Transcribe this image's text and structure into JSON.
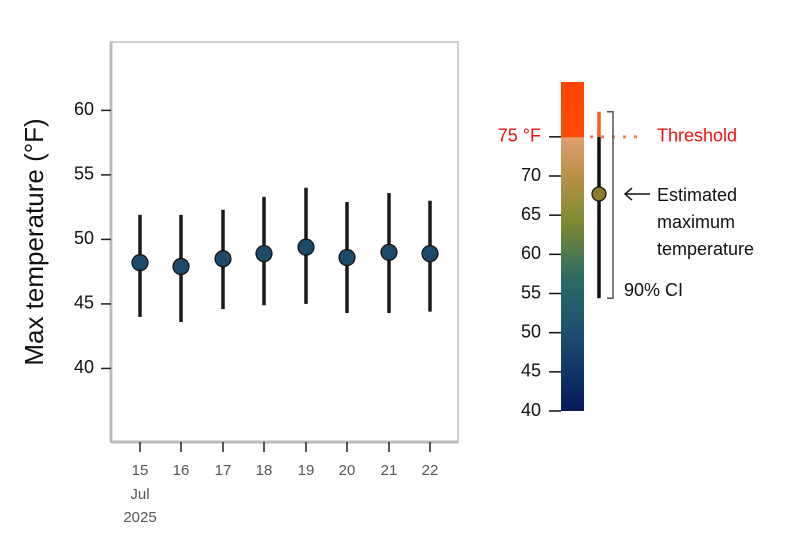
{
  "chart_data": [
    {
      "type": "errorbar",
      "y_label": "Max temperature (°F)",
      "categories": [
        "15",
        "16",
        "17",
        "18",
        "19",
        "20",
        "21",
        "22"
      ],
      "x_month": "Jul",
      "x_year": "2025",
      "values": [
        48.2,
        47.9,
        48.5,
        48.9,
        49.4,
        48.6,
        49.0,
        48.9
      ],
      "low": [
        44.0,
        43.6,
        44.6,
        44.9,
        45.0,
        44.3,
        44.3,
        44.4
      ],
      "high": [
        51.9,
        51.9,
        52.3,
        53.3,
        54.0,
        52.9,
        53.6,
        53.0
      ],
      "color": "#1c4a68",
      "line_color": "#1a1a1a",
      "ylim": [
        34.3,
        65.3
      ],
      "yticks": [
        40,
        45,
        50,
        55,
        60
      ]
    },
    {
      "type": "colorbar",
      "clim": [
        40,
        82
      ],
      "cticks": [
        40,
        45,
        50,
        55,
        60,
        65,
        70,
        {
          "value": 75,
          "label": "75 °F"
        }
      ],
      "gradient": [
        {
          "value": 40,
          "color": "#061a5c"
        },
        {
          "value": 50,
          "color": "#1b4f6e"
        },
        {
          "value": 57,
          "color": "#2c6b63"
        },
        {
          "value": 64,
          "color": "#7d8a32"
        },
        {
          "value": 70,
          "color": "#b99048"
        },
        {
          "value": 74.9,
          "color": "#e0a070"
        },
        {
          "value": 75,
          "color": "#ff4a00"
        },
        {
          "value": 82,
          "color": "#ff4500"
        }
      ],
      "threshold": 75,
      "threshold_label": "Threshold",
      "threshold_color": "#ee1111",
      "estimate": 67.7,
      "ci_low": 54.4,
      "ci_high": 78.2,
      "marker_color": "#8a7a2a",
      "estimate_label": [
        "Estimated",
        "maximum",
        "temperature"
      ],
      "ci_label": "90% CI"
    }
  ]
}
